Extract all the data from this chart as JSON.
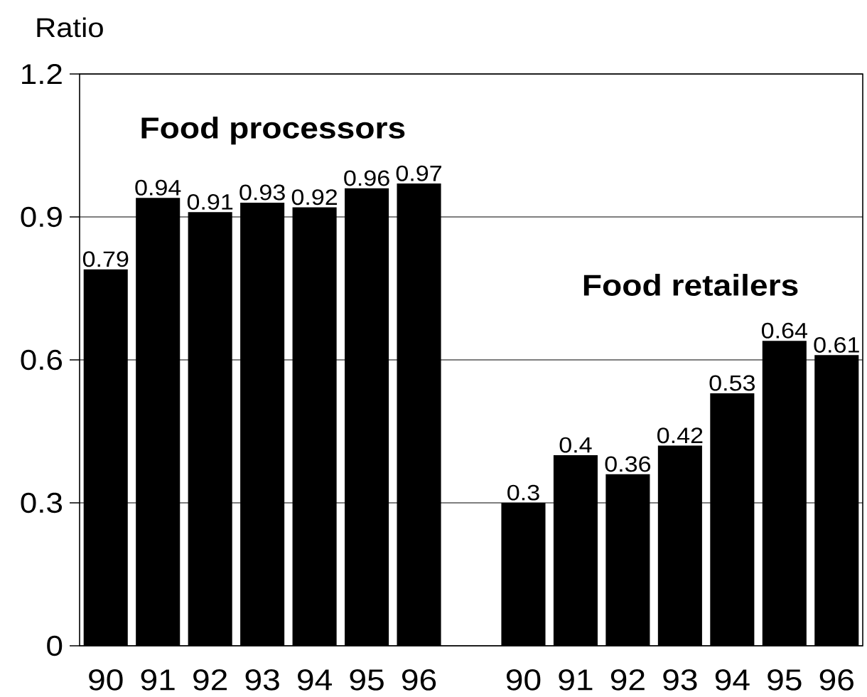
{
  "chart_data": {
    "type": "bar",
    "ylabel": "Ratio",
    "annotations": [
      "Food processors",
      "Food retailers"
    ],
    "categories": [
      "90",
      "91",
      "92",
      "93",
      "94",
      "95",
      "96",
      null,
      "90",
      "91",
      "92",
      "93",
      "94",
      "95",
      "96"
    ],
    "values": [
      0.79,
      0.94,
      0.91,
      0.93,
      0.92,
      0.96,
      0.97,
      null,
      0.3,
      0.4,
      0.36,
      0.42,
      0.53,
      0.64,
      0.61
    ],
    "color": "#000000",
    "ylim": [
      0,
      1.2
    ],
    "yticks": [
      0,
      0.3,
      0.6,
      0.9,
      1.2
    ],
    "grid": "y",
    "data_labels": true
  }
}
